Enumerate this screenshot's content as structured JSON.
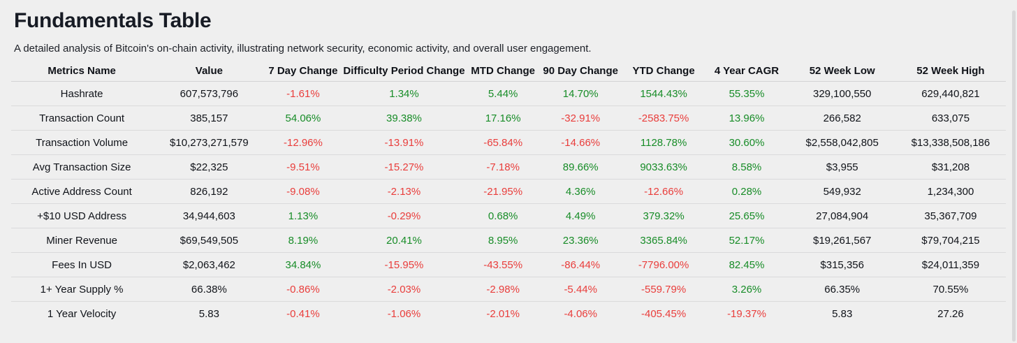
{
  "header": {
    "title": "Fundamentals Table",
    "subtitle": "A detailed analysis of Bitcoin's on-chain activity, illustrating network security, economic activity, and overall user engagement."
  },
  "theme": {
    "positive_color": "#178c27",
    "negative_color": "#e93d3b",
    "background_color": "#efefef"
  },
  "table": {
    "columns": [
      "Metrics Name",
      "Value",
      "7 Day Change",
      "Difficulty Period Change",
      "MTD Change",
      "90 Day Change",
      "YTD Change",
      "4 Year CAGR",
      "52 Week Low",
      "52 Week High"
    ],
    "rows": [
      {
        "metric": "Hashrate",
        "value": "607,573,796",
        "changes": [
          {
            "text": "-1.61%",
            "tone": "neg"
          },
          {
            "text": "1.34%",
            "tone": "pos"
          },
          {
            "text": "5.44%",
            "tone": "pos"
          },
          {
            "text": "14.70%",
            "tone": "pos"
          },
          {
            "text": "1544.43%",
            "tone": "pos"
          },
          {
            "text": "55.35%",
            "tone": "pos"
          }
        ],
        "week_low": "329,100,550",
        "week_high": "629,440,821"
      },
      {
        "metric": "Transaction Count",
        "value": "385,157",
        "changes": [
          {
            "text": "54.06%",
            "tone": "pos"
          },
          {
            "text": "39.38%",
            "tone": "pos"
          },
          {
            "text": "17.16%",
            "tone": "pos"
          },
          {
            "text": "-32.91%",
            "tone": "neg"
          },
          {
            "text": "-2583.75%",
            "tone": "neg"
          },
          {
            "text": "13.96%",
            "tone": "pos"
          }
        ],
        "week_low": "266,582",
        "week_high": "633,075"
      },
      {
        "metric": "Transaction Volume",
        "value": "$10,273,271,579",
        "changes": [
          {
            "text": "-12.96%",
            "tone": "neg"
          },
          {
            "text": "-13.91%",
            "tone": "neg"
          },
          {
            "text": "-65.84%",
            "tone": "neg"
          },
          {
            "text": "-14.66%",
            "tone": "neg"
          },
          {
            "text": "1128.78%",
            "tone": "pos"
          },
          {
            "text": "30.60%",
            "tone": "pos"
          }
        ],
        "week_low": "$2,558,042,805",
        "week_high": "$13,338,508,186"
      },
      {
        "metric": "Avg Transaction Size",
        "value": "$22,325",
        "changes": [
          {
            "text": "-9.51%",
            "tone": "neg"
          },
          {
            "text": "-15.27%",
            "tone": "neg"
          },
          {
            "text": "-7.18%",
            "tone": "neg"
          },
          {
            "text": "89.66%",
            "tone": "pos"
          },
          {
            "text": "9033.63%",
            "tone": "pos"
          },
          {
            "text": "8.58%",
            "tone": "pos"
          }
        ],
        "week_low": "$3,955",
        "week_high": "$31,208"
      },
      {
        "metric": "Active Address Count",
        "value": "826,192",
        "changes": [
          {
            "text": "-9.08%",
            "tone": "neg"
          },
          {
            "text": "-2.13%",
            "tone": "neg"
          },
          {
            "text": "-21.95%",
            "tone": "neg"
          },
          {
            "text": "4.36%",
            "tone": "pos"
          },
          {
            "text": "-12.66%",
            "tone": "neg"
          },
          {
            "text": "0.28%",
            "tone": "pos"
          }
        ],
        "week_low": "549,932",
        "week_high": "1,234,300"
      },
      {
        "metric": "+$10 USD Address",
        "value": "34,944,603",
        "changes": [
          {
            "text": "1.13%",
            "tone": "pos"
          },
          {
            "text": "-0.29%",
            "tone": "neg"
          },
          {
            "text": "0.68%",
            "tone": "pos"
          },
          {
            "text": "4.49%",
            "tone": "pos"
          },
          {
            "text": "379.32%",
            "tone": "pos"
          },
          {
            "text": "25.65%",
            "tone": "pos"
          }
        ],
        "week_low": "27,084,904",
        "week_high": "35,367,709"
      },
      {
        "metric": "Miner Revenue",
        "value": "$69,549,505",
        "changes": [
          {
            "text": "8.19%",
            "tone": "pos"
          },
          {
            "text": "20.41%",
            "tone": "pos"
          },
          {
            "text": "8.95%",
            "tone": "pos"
          },
          {
            "text": "23.36%",
            "tone": "pos"
          },
          {
            "text": "3365.84%",
            "tone": "pos"
          },
          {
            "text": "52.17%",
            "tone": "pos"
          }
        ],
        "week_low": "$19,261,567",
        "week_high": "$79,704,215"
      },
      {
        "metric": "Fees In USD",
        "value": "$2,063,462",
        "changes": [
          {
            "text": "34.84%",
            "tone": "pos"
          },
          {
            "text": "-15.95%",
            "tone": "neg"
          },
          {
            "text": "-43.55%",
            "tone": "neg"
          },
          {
            "text": "-86.44%",
            "tone": "neg"
          },
          {
            "text": "-7796.00%",
            "tone": "neg"
          },
          {
            "text": "82.45%",
            "tone": "pos"
          }
        ],
        "week_low": "$315,356",
        "week_high": "$24,011,359"
      },
      {
        "metric": "1+ Year Supply %",
        "value": "66.38%",
        "changes": [
          {
            "text": "-0.86%",
            "tone": "neg"
          },
          {
            "text": "-2.03%",
            "tone": "neg"
          },
          {
            "text": "-2.98%",
            "tone": "neg"
          },
          {
            "text": "-5.44%",
            "tone": "neg"
          },
          {
            "text": "-559.79%",
            "tone": "neg"
          },
          {
            "text": "3.26%",
            "tone": "pos"
          }
        ],
        "week_low": "66.35%",
        "week_high": "70.55%"
      },
      {
        "metric": "1 Year Velocity",
        "value": "5.83",
        "changes": [
          {
            "text": "-0.41%",
            "tone": "neg"
          },
          {
            "text": "-1.06%",
            "tone": "neg"
          },
          {
            "text": "-2.01%",
            "tone": "neg"
          },
          {
            "text": "-4.06%",
            "tone": "neg"
          },
          {
            "text": "-405.45%",
            "tone": "neg"
          },
          {
            "text": "-19.37%",
            "tone": "neg"
          }
        ],
        "week_low": "5.83",
        "week_high": "27.26"
      }
    ]
  }
}
